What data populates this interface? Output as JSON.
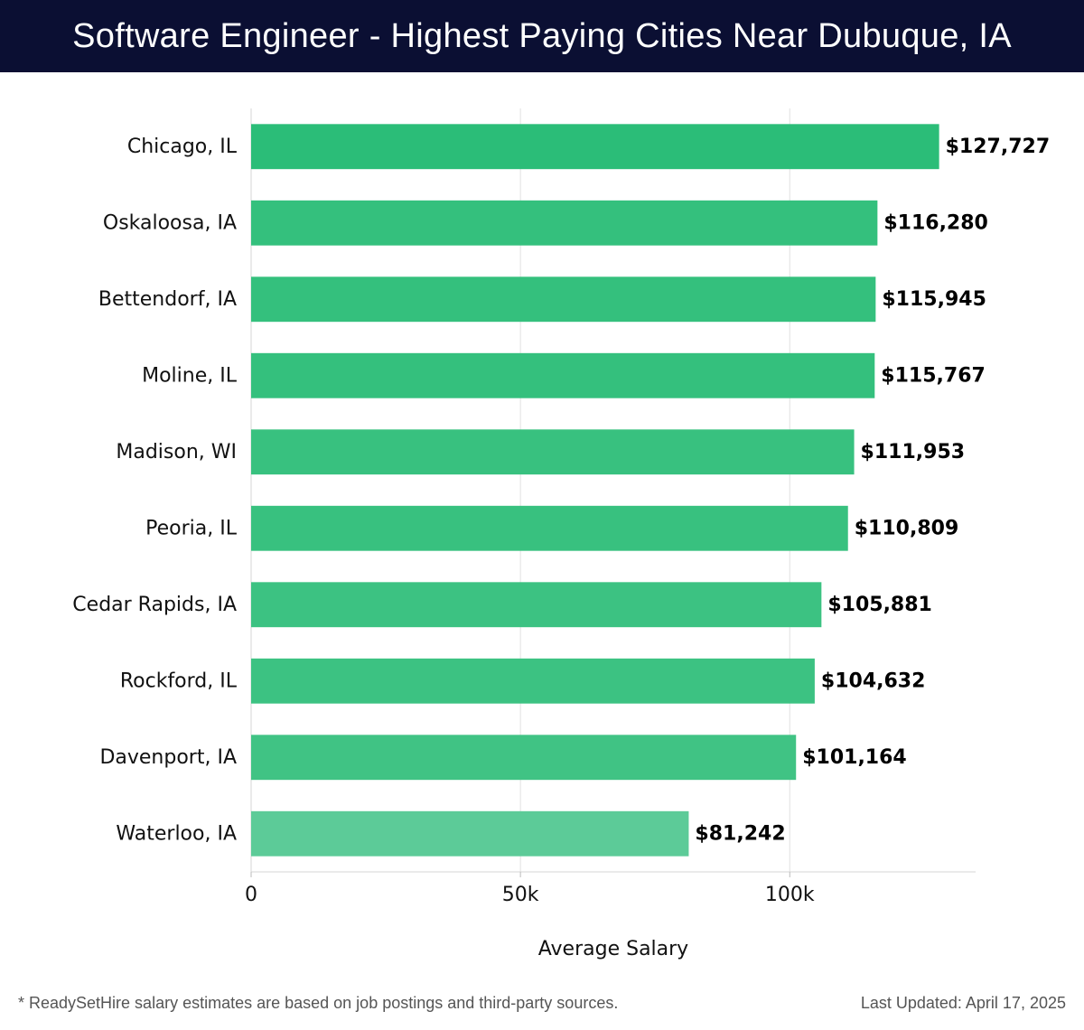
{
  "header": {
    "title": "Software Engineer - Highest Paying Cities Near Dubuque, IA"
  },
  "chart_data": {
    "type": "bar",
    "orientation": "horizontal",
    "categories": [
      "Chicago, IL",
      "Oskaloosa, IA",
      "Bettendorf, IA",
      "Moline, IL",
      "Madison, WI",
      "Peoria, IL",
      "Cedar Rapids, IA",
      "Rockford, IL",
      "Davenport, IA",
      "Waterloo, IA"
    ],
    "values": [
      127727,
      116280,
      115945,
      115767,
      111953,
      110809,
      105881,
      104632,
      101164,
      81242
    ],
    "value_labels": [
      "$127,727",
      "$116,280",
      "$115,945",
      "$115,767",
      "$111,953",
      "$110,809",
      "$105,881",
      "$104,632",
      "$101,164",
      "$81,242"
    ],
    "xlabel": "Average Salary",
    "ylabel": "",
    "xlim": [
      0,
      134500
    ],
    "xticks": [
      0,
      50000,
      100000
    ],
    "xtick_labels": [
      "0",
      "50k",
      "100k"
    ],
    "grid": true,
    "bar_colors": [
      "#2bbd78",
      "#34c07d",
      "#34c07d",
      "#34c07d",
      "#38c17f",
      "#38c17f",
      "#3cc282",
      "#3cc282",
      "#40c384",
      "#5ccb98"
    ]
  },
  "footer": {
    "note": "* ReadySetHire salary estimates are based on job postings and third-party sources.",
    "updated": "Last Updated: April 17, 2025"
  }
}
